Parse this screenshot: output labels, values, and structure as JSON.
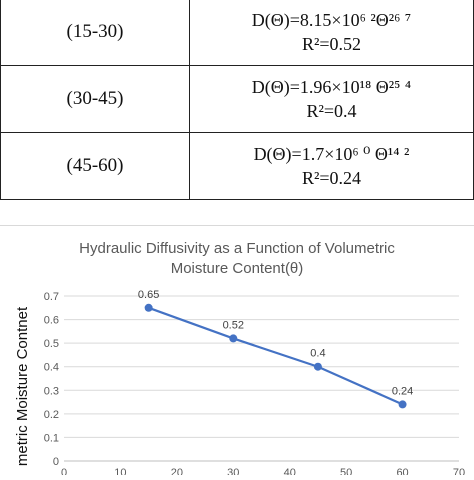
{
  "table": {
    "rows": [
      {
        "range": "(15-30)",
        "equation": "D(Θ)=8.15×10⁶ ²Θ²⁶ ⁷",
        "r2": "R²=0.52"
      },
      {
        "range": "(30-45)",
        "equation": "D(Θ)=1.96×10¹⁸ Θ²⁵ ⁴",
        "r2": "R²=0.4"
      },
      {
        "range": "(45-60)",
        "equation": "D(Θ)=1.7×10⁶ ⁰ Θ¹⁴ ²",
        "r2": "R²=0.24"
      }
    ]
  },
  "chart_data": {
    "type": "line",
    "title_lines": [
      "Hydraulic Diffusivity as a Function of Volumetric",
      "Moisture Content(θ)"
    ],
    "ylabel": "metric Moisture Contnet",
    "x": [
      15,
      30,
      45,
      60
    ],
    "series": [
      {
        "values": [
          0.65,
          0.52,
          0.4,
          0.24
        ],
        "labels": [
          "0.65",
          "0.52",
          "0.4",
          "0.24"
        ]
      }
    ],
    "xlim": [
      0,
      70
    ],
    "ylim": [
      0,
      0.7
    ],
    "x_ticks": [
      "0",
      "10",
      "20",
      "30",
      "40",
      "50",
      "60",
      "70"
    ],
    "y_ticks": [
      "0",
      "0.1",
      "0.2",
      "0.3",
      "0.4",
      "0.5",
      "0.6",
      "0.7"
    ],
    "grid": true,
    "line_color": "#4472c4"
  }
}
